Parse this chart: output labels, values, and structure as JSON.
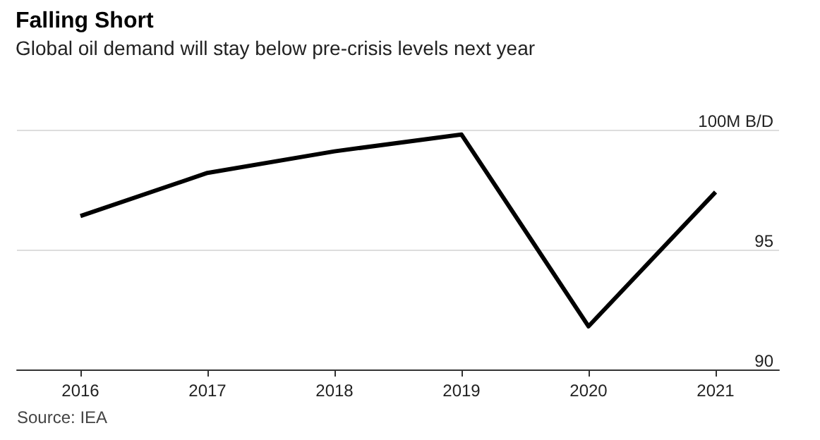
{
  "chart_data": {
    "type": "line",
    "title": "Falling Short",
    "subtitle": "Global oil demand will stay below pre-crisis levels next year",
    "categories": [
      "2016",
      "2017",
      "2018",
      "2019",
      "2020",
      "2021"
    ],
    "series": [
      {
        "color": "#000000",
        "values": [
          96.4,
          98.2,
          99.1,
          99.8,
          91.8,
          97.4
        ]
      }
    ],
    "ylim": [
      90,
      100
    ],
    "yticks": [
      90,
      95,
      {
        "value": 100,
        "label": "100M B/D"
      }
    ],
    "grid": "y",
    "marker": "none",
    "line_style": "solid",
    "annotations": [
      "Source: IEA"
    ]
  }
}
